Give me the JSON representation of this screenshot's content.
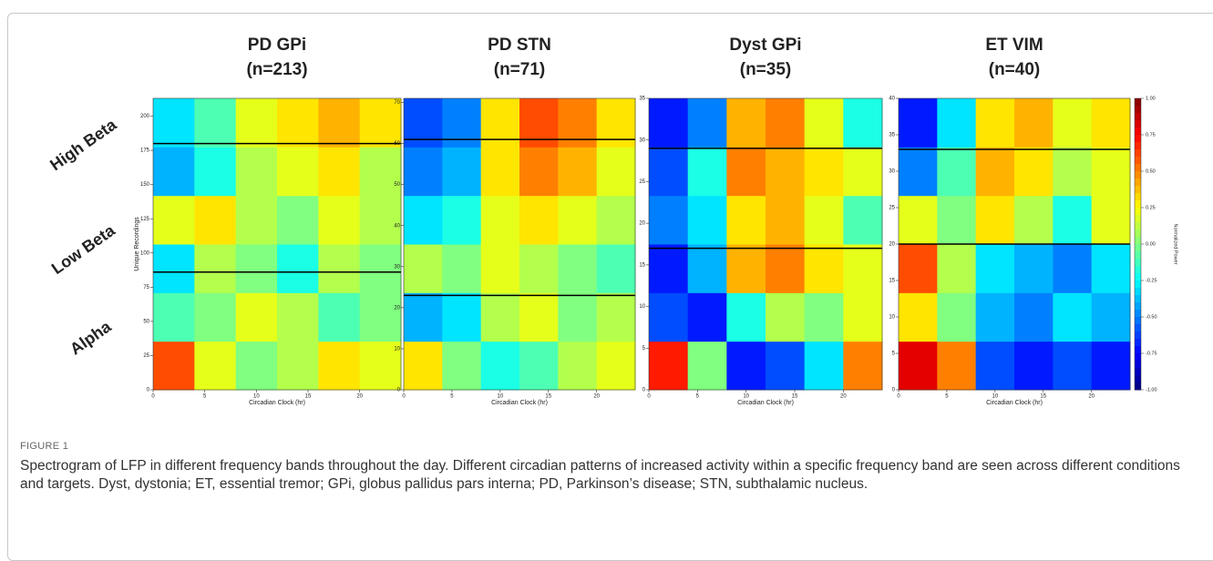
{
  "chart_data": [
    {
      "type": "heatmap",
      "title": "PD GPi",
      "subtitle": "(n=213)",
      "xlabel": "Circadian Clock (hr)",
      "ylabel": "Unique Recordings",
      "xlim": [
        0,
        24
      ],
      "xticks": [
        0,
        5,
        10,
        15,
        20
      ],
      "ylim": [
        0,
        213
      ],
      "yticks": [
        0,
        25,
        50,
        75,
        100,
        125,
        150,
        175,
        200
      ],
      "boundaries": [
        86,
        180
      ],
      "z": [
        [
          0.6,
          0.2,
          0.0,
          0.1,
          0.3,
          0.2
        ],
        [
          -0.1,
          0.0,
          0.2,
          0.1,
          -0.1,
          0.0
        ],
        [
          -0.3,
          0.1,
          0.0,
          -0.2,
          0.1,
          0.0
        ],
        [
          0.2,
          0.3,
          0.1,
          0.0,
          0.2,
          0.1
        ],
        [
          -0.4,
          -0.2,
          0.1,
          0.2,
          0.3,
          0.1
        ],
        [
          -0.3,
          -0.1,
          0.2,
          0.3,
          0.4,
          0.3
        ]
      ]
    },
    {
      "type": "heatmap",
      "title": "PD STN",
      "subtitle": "(n=71)",
      "xlabel": "Circadian Clock (hr)",
      "xlim": [
        0,
        24
      ],
      "xticks": [
        0,
        5,
        10,
        15,
        20
      ],
      "ylim": [
        0,
        71
      ],
      "yticks": [
        0,
        10,
        20,
        30,
        40,
        50,
        60,
        70
      ],
      "boundaries": [
        23,
        61
      ],
      "z": [
        [
          0.3,
          0.0,
          -0.2,
          -0.1,
          0.1,
          0.2
        ],
        [
          -0.4,
          -0.3,
          0.1,
          0.2,
          0.0,
          0.1
        ],
        [
          0.1,
          0.0,
          0.2,
          0.1,
          0.0,
          -0.1
        ],
        [
          -0.3,
          -0.2,
          0.2,
          0.3,
          0.2,
          0.1
        ],
        [
          -0.5,
          -0.4,
          0.3,
          0.5,
          0.4,
          0.2
        ],
        [
          -0.6,
          -0.5,
          0.3,
          0.6,
          0.5,
          0.3
        ]
      ]
    },
    {
      "type": "heatmap",
      "title": "Dyst GPi",
      "subtitle": "(n=35)",
      "xlabel": "Circadian Clock (hr)",
      "xlim": [
        0,
        24
      ],
      "xticks": [
        0,
        5,
        10,
        15,
        20
      ],
      "ylim": [
        0,
        35
      ],
      "yticks": [
        0,
        5,
        10,
        15,
        20,
        25,
        30,
        35
      ],
      "boundaries": [
        17,
        29
      ],
      "z": [
        [
          0.7,
          0.0,
          -0.7,
          -0.6,
          -0.3,
          0.5
        ],
        [
          -0.6,
          -0.7,
          -0.2,
          0.1,
          0.0,
          0.2
        ],
        [
          -0.7,
          -0.4,
          0.4,
          0.5,
          0.3,
          0.2
        ],
        [
          -0.5,
          -0.3,
          0.3,
          0.4,
          0.2,
          -0.1
        ],
        [
          -0.6,
          -0.2,
          0.5,
          0.4,
          0.3,
          0.2
        ],
        [
          -0.7,
          -0.5,
          0.4,
          0.5,
          0.2,
          -0.2
        ]
      ]
    },
    {
      "type": "heatmap",
      "title": "ET VIM",
      "subtitle": "(n=40)",
      "xlabel": "Circadian Clock (hr)",
      "xlim": [
        0,
        24
      ],
      "xticks": [
        0,
        5,
        10,
        15,
        20
      ],
      "ylim": [
        0,
        40
      ],
      "yticks": [
        0,
        5,
        10,
        15,
        20,
        25,
        30,
        35,
        40
      ],
      "boundaries": [
        20,
        33
      ],
      "z": [
        [
          0.8,
          0.5,
          -0.6,
          -0.7,
          -0.6,
          -0.7
        ],
        [
          0.3,
          0.0,
          -0.4,
          -0.5,
          -0.3,
          -0.4
        ],
        [
          0.6,
          0.1,
          -0.3,
          -0.4,
          -0.5,
          -0.3
        ],
        [
          0.2,
          0.0,
          0.3,
          0.1,
          -0.2,
          0.2
        ],
        [
          -0.5,
          -0.1,
          0.4,
          0.3,
          0.1,
          0.2
        ],
        [
          -0.7,
          -0.3,
          0.3,
          0.4,
          0.2,
          0.3
        ]
      ],
      "colorbar": {
        "label": "Normalized Power",
        "lim": [
          -1,
          1
        ],
        "ticks": [
          {
            "value": -1,
            "label": "-1.00"
          },
          {
            "value": -0.75,
            "label": "-0.75"
          },
          {
            "value": -0.5,
            "label": "-0.50"
          },
          {
            "value": -0.25,
            "label": "-0.25"
          },
          {
            "value": 0,
            "label": "0.00"
          },
          {
            "value": 0.25,
            "label": "0.25"
          },
          {
            "value": 0.5,
            "label": "0.50"
          },
          {
            "value": 0.75,
            "label": "0.75"
          },
          {
            "value": 1,
            "label": "1.00"
          }
        ]
      }
    }
  ],
  "band_labels": [
    "High Beta",
    "Low Beta",
    "Alpha"
  ],
  "figure": {
    "label": "FIGURE 1",
    "caption": "Spectrogram of LFP in different frequency bands throughout the day. Different circadian patterns of increased activity within a specific frequency band are seen across different conditions and targets. Dyst, dystonia; ET, essential tremor; GPi, globus pallidus pars interna; PD, Parkinson’s disease; STN, subthalamic nucleus."
  }
}
